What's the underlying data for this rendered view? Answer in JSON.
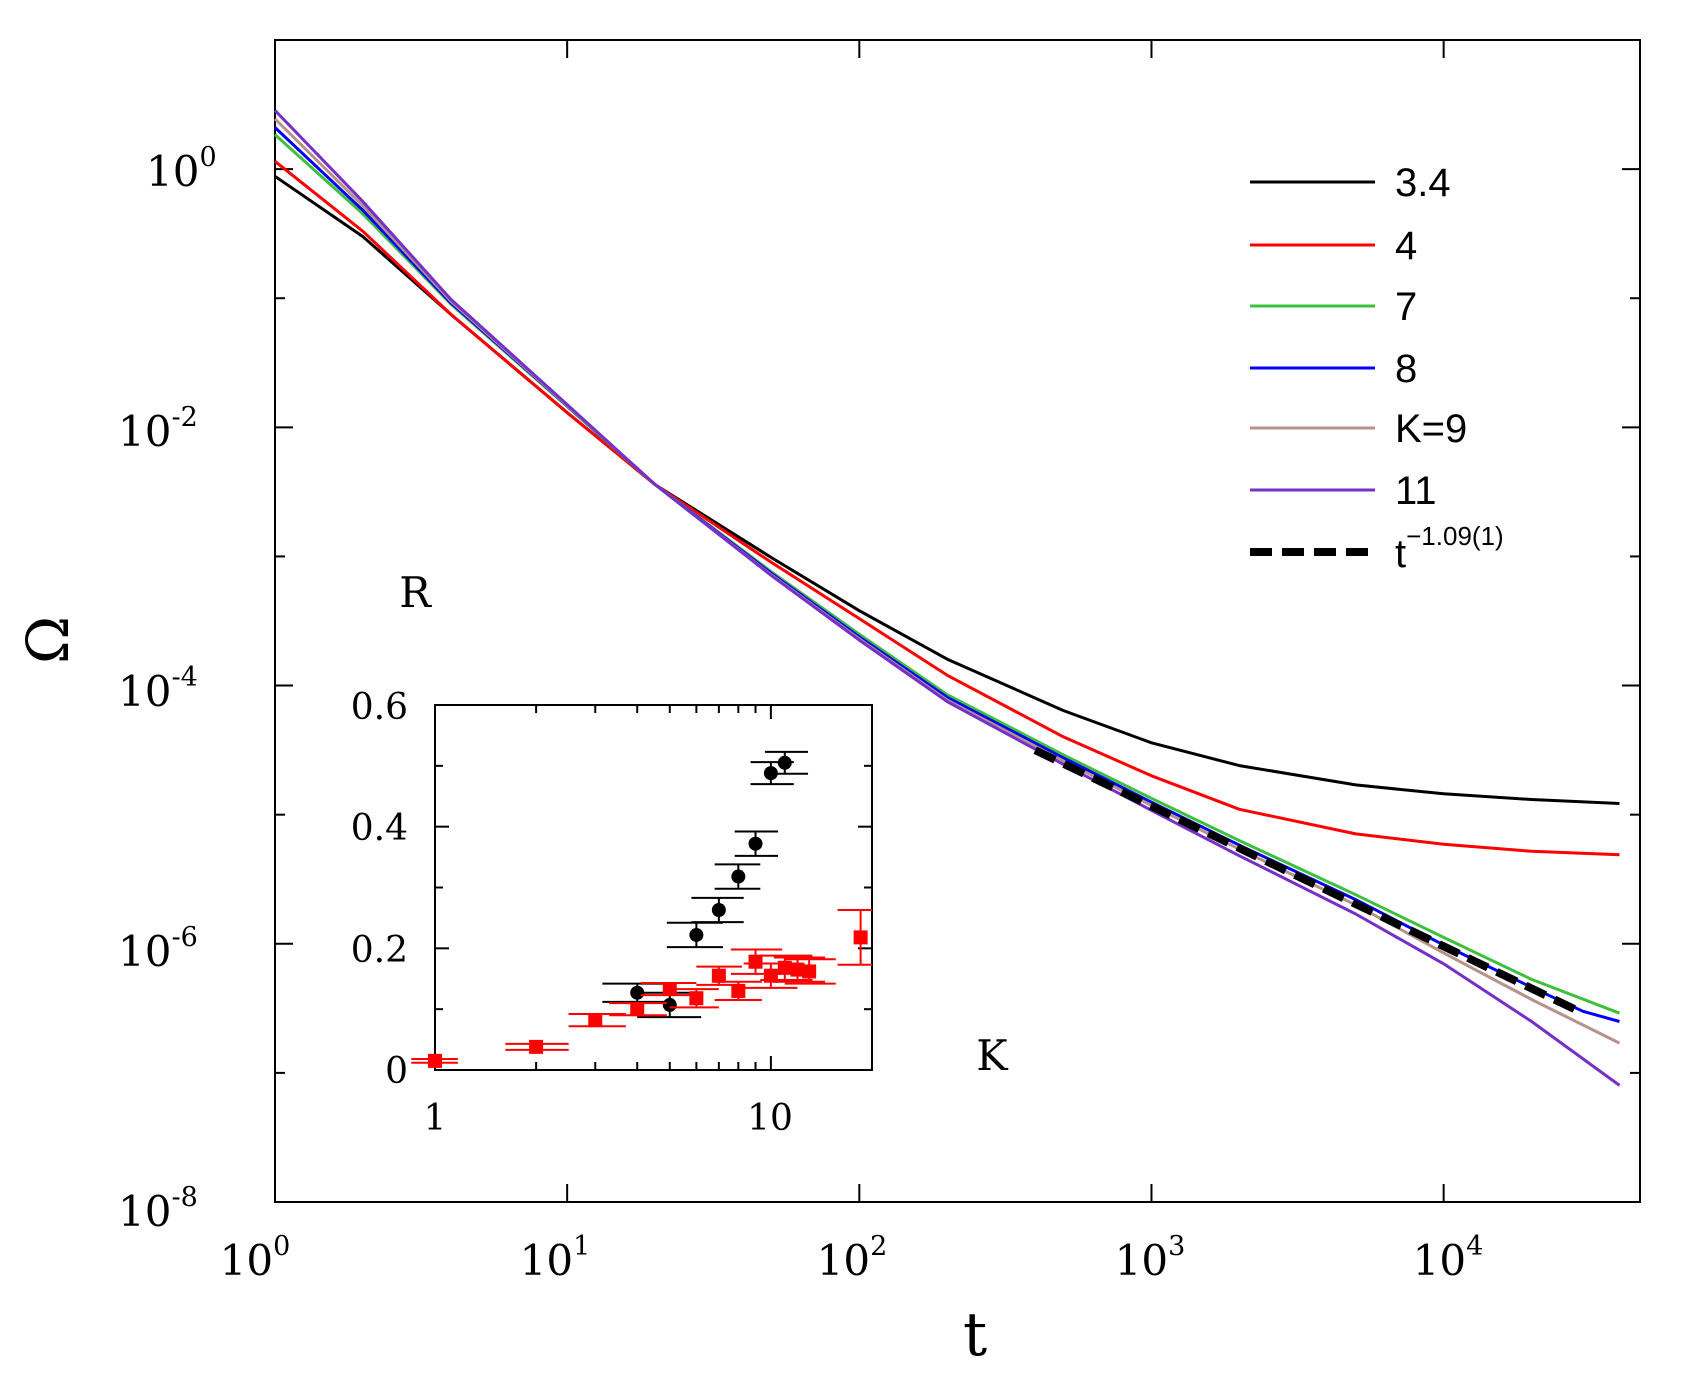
{
  "chart_data": [
    {
      "type": "line",
      "scale": "log-log",
      "xlabel": "t",
      "ylabel": "Ω",
      "xlim": [
        1,
        47000
      ],
      "ylim": [
        1e-08,
        10
      ],
      "x_ticks": [
        {
          "value": 1,
          "base": "10",
          "exp": "0"
        },
        {
          "value": 10,
          "base": "10",
          "exp": "1"
        },
        {
          "value": 100,
          "base": "10",
          "exp": "2"
        },
        {
          "value": 1000,
          "base": "10",
          "exp": "3"
        },
        {
          "value": 10000,
          "base": "10",
          "exp": "4"
        }
      ],
      "y_ticks": [
        {
          "value": 1,
          "base": "10",
          "exp": "0"
        },
        {
          "value": 0.01,
          "base": "10",
          "exp": "-2"
        },
        {
          "value": 0.0001,
          "base": "10",
          "exp": "-4"
        },
        {
          "value": 1e-06,
          "base": "10",
          "exp": "-6"
        },
        {
          "value": 1e-08,
          "base": "10",
          "exp": "-8"
        }
      ],
      "annotations": [
        "R",
        "K"
      ],
      "series": [
        {
          "name": "3.4",
          "color": "#000000",
          "style": "solid",
          "x": [
            1,
            2,
            4,
            10,
            20,
            50,
            100,
            200,
            500,
            1000,
            2000,
            5000,
            10000,
            20000,
            40000
          ],
          "y": [
            0.88,
            0.3,
            0.075,
            0.013,
            0.0036,
            0.00098,
            0.00038,
            0.00016,
            6.4e-05,
            3.6e-05,
            2.4e-05,
            1.7e-05,
            1.45e-05,
            1.31e-05,
            1.22e-05
          ]
        },
        {
          "name": "4",
          "color": "#ff0000",
          "style": "solid",
          "x": [
            1,
            2,
            4,
            10,
            20,
            50,
            100,
            200,
            500,
            1000,
            2000,
            5000,
            10000,
            20000,
            40000
          ],
          "y": [
            1.15,
            0.33,
            0.075,
            0.013,
            0.0036,
            0.0009,
            0.00033,
            0.00012,
            4e-05,
            2e-05,
            1.1e-05,
            7.1e-06,
            5.9e-06,
            5.2e-06,
            4.9e-06
          ]
        },
        {
          "name": "7",
          "color": "#3ec03e",
          "style": "solid",
          "x": [
            1,
            2,
            4,
            10,
            20,
            50,
            100,
            200,
            500,
            1000,
            2000,
            5000,
            10000,
            20000,
            40000
          ],
          "y": [
            1.85,
            0.45,
            0.09,
            0.0145,
            0.0036,
            0.00076,
            0.00025,
            8.5e-05,
            2.9e-05,
            1.34e-05,
            6.3e-06,
            2.4e-06,
            1.12e-06,
            5.3e-07,
            2.9e-07
          ]
        },
        {
          "name": "8",
          "color": "#0000ff",
          "style": "solid",
          "x": [
            1,
            2,
            4,
            10,
            20,
            50,
            100,
            200,
            500,
            1000,
            2000,
            5000,
            10000,
            20000,
            30000,
            40000
          ],
          "y": [
            2.1,
            0.48,
            0.092,
            0.0147,
            0.0036,
            0.00074,
            0.000238,
            8.1e-05,
            2.75e-05,
            1.25e-05,
            5.8e-06,
            2.2e-06,
            9.8e-07,
            4.6e-07,
            3e-07,
            2.5e-07
          ]
        },
        {
          "name": "K=9",
          "color": "#b8918a",
          "style": "solid",
          "x": [
            1,
            2,
            4,
            10,
            20,
            50,
            100,
            200,
            500,
            1000,
            2000,
            5000,
            10000,
            20000,
            40000
          ],
          "y": [
            2.45,
            0.52,
            0.095,
            0.0148,
            0.0036,
            0.00072,
            0.00023,
            7.7e-05,
            2.6e-05,
            1.18e-05,
            5.4e-06,
            2e-06,
            8.5e-07,
            3.7e-07,
            1.7e-07
          ]
        },
        {
          "name": "11",
          "color": "#7530c8",
          "style": "solid",
          "x": [
            1,
            2,
            4,
            10,
            20,
            50,
            100,
            200,
            500,
            1000,
            2000,
            5000,
            10000,
            20000,
            40000
          ],
          "y": [
            2.85,
            0.56,
            0.098,
            0.015,
            0.0036,
            0.00071,
            0.000225,
            7.5e-05,
            2.45e-05,
            1.08e-05,
            4.8e-06,
            1.7e-06,
            7e-07,
            2.5e-07,
            8e-08
          ]
        },
        {
          "name": "t^{-1.09(1)}",
          "label_base": "t",
          "label_exp": "−1.09(1)",
          "color": "#000000",
          "style": "dashed",
          "x": [
            400,
            30000
          ],
          "y": [
            3.16e-05,
            2.9e-07
          ]
        }
      ]
    },
    {
      "type": "scatter",
      "inset": true,
      "xscale": "log",
      "xlabel": "",
      "ylabel": "",
      "xlim": [
        1,
        20
      ],
      "ylim": [
        0,
        0.6
      ],
      "x_ticks": [
        {
          "value": 1,
          "label": "1"
        },
        {
          "value": 10,
          "label": "10"
        }
      ],
      "y_ticks": [
        {
          "value": 0,
          "label": "0"
        },
        {
          "value": 0.2,
          "label": "0.2"
        },
        {
          "value": 0.4,
          "label": "0.4"
        },
        {
          "value": 0.6,
          "label": "0.6"
        }
      ],
      "series": [
        {
          "name": "R",
          "marker": "circle",
          "color": "#000000",
          "points": [
            {
              "x": 4.0,
              "y": 0.127,
              "xerr_lo": 3.15,
              "xerr_hi": 5.1,
              "yerr": 0.015
            },
            {
              "x": 5.0,
              "y": 0.107,
              "xerr_lo": 4.0,
              "xerr_hi": 6.2,
              "yerr": 0.02
            },
            {
              "x": 6.0,
              "y": 0.222,
              "xerr_lo": 4.9,
              "xerr_hi": 7.2,
              "yerr": 0.02
            },
            {
              "x": 7.0,
              "y": 0.263,
              "xerr_lo": 5.8,
              "xerr_hi": 8.3,
              "yerr": 0.02
            },
            {
              "x": 8.0,
              "y": 0.318,
              "xerr_lo": 6.8,
              "xerr_hi": 9.3,
              "yerr": 0.02
            },
            {
              "x": 9.0,
              "y": 0.372,
              "xerr_lo": 7.8,
              "xerr_hi": 10.5,
              "yerr": 0.02
            },
            {
              "x": 10.0,
              "y": 0.488,
              "xerr_lo": 8.7,
              "xerr_hi": 11.7,
              "yerr": 0.018
            },
            {
              "x": 11.0,
              "y": 0.505,
              "xerr_lo": 9.6,
              "xerr_hi": 12.9,
              "yerr": 0.018
            }
          ]
        },
        {
          "name": "K",
          "marker": "square",
          "color": "#ff0000",
          "points": [
            {
              "x": 1.0,
              "y": 0.015,
              "xerr_lo": 0.85,
              "xerr_hi": 1.17,
              "yerr": 0.003
            },
            {
              "x": 2.0,
              "y": 0.038,
              "xerr_lo": 1.62,
              "xerr_hi": 2.5,
              "yerr": 0.005
            },
            {
              "x": 3.0,
              "y": 0.082,
              "xerr_lo": 2.5,
              "xerr_hi": 3.7,
              "yerr": 0.01
            },
            {
              "x": 4.0,
              "y": 0.1,
              "xerr_lo": 3.3,
              "xerr_hi": 4.9,
              "yerr": 0.01
            },
            {
              "x": 5.0,
              "y": 0.133,
              "xerr_lo": 4.1,
              "xerr_hi": 6.0,
              "yerr": 0.01
            },
            {
              "x": 6.0,
              "y": 0.118,
              "xerr_lo": 5.0,
              "xerr_hi": 7.0,
              "yerr": 0.015
            },
            {
              "x": 7.0,
              "y": 0.155,
              "xerr_lo": 6.0,
              "xerr_hi": 8.2,
              "yerr": 0.015
            },
            {
              "x": 8.0,
              "y": 0.13,
              "xerr_lo": 6.8,
              "xerr_hi": 9.4,
              "yerr": 0.015
            },
            {
              "x": 9.0,
              "y": 0.178,
              "xerr_lo": 7.6,
              "xerr_hi": 10.8,
              "yerr": 0.02
            },
            {
              "x": 10.0,
              "y": 0.155,
              "xerr_lo": 8.3,
              "xerr_hi": 12.0,
              "yerr": 0.02
            },
            {
              "x": 11.0,
              "y": 0.168,
              "xerr_lo": 9.3,
              "xerr_hi": 13.3,
              "yerr": 0.02
            },
            {
              "x": 12.0,
              "y": 0.165,
              "xerr_lo": 10.2,
              "xerr_hi": 14.5,
              "yerr": 0.02
            },
            {
              "x": 13.0,
              "y": 0.162,
              "xerr_lo": 11.0,
              "xerr_hi": 15.6,
              "yerr": 0.02
            },
            {
              "x": 18.5,
              "y": 0.218,
              "xerr_lo": 15.8,
              "xerr_hi": 22.0,
              "yerr": 0.045
            }
          ]
        }
      ]
    }
  ]
}
